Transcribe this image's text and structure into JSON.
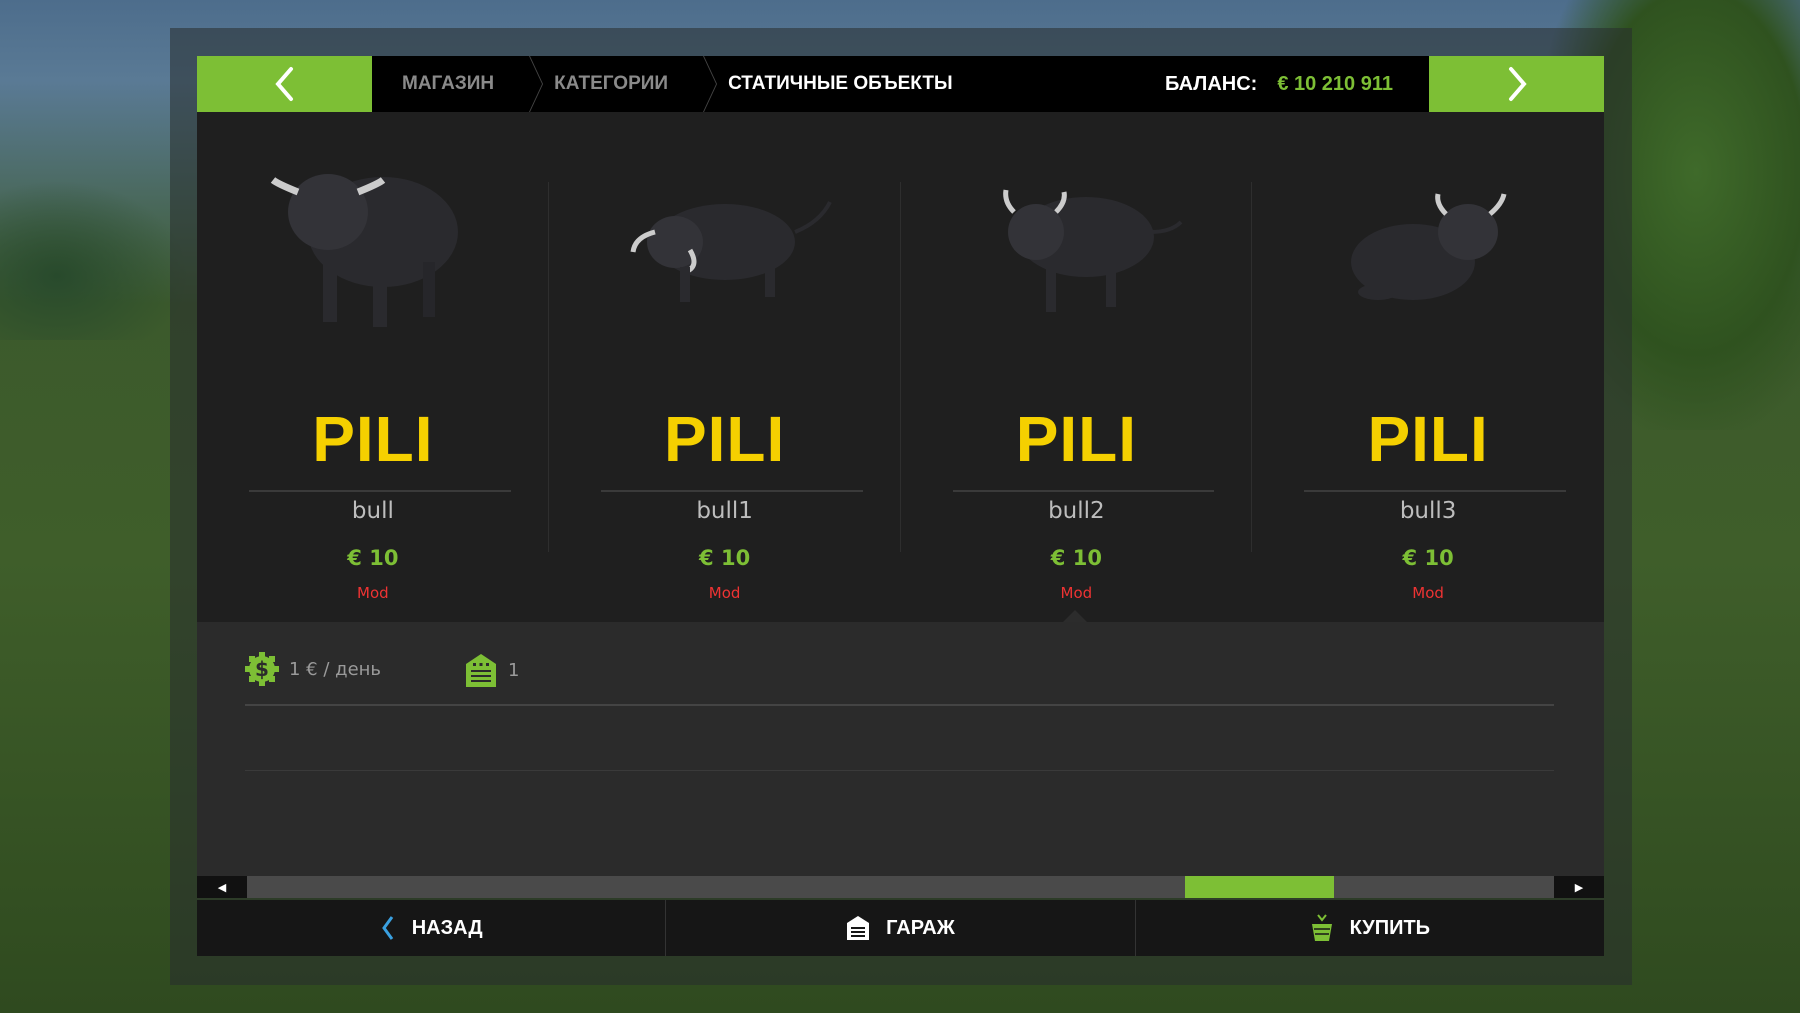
{
  "header": {
    "breadcrumbs": [
      "МАГАЗИН",
      "КАТЕГОРИИ",
      "СТАТИЧНЫЕ ОБЪЕКТЫ"
    ],
    "balance_label": "БАЛАНС:",
    "balance_value": "€ 10 210 911"
  },
  "items": [
    {
      "brand": "PILI",
      "name": "bull",
      "price": "€ 10",
      "source": "Mod"
    },
    {
      "brand": "PILI",
      "name": "bull1",
      "price": "€ 10",
      "source": "Mod"
    },
    {
      "brand": "PILI",
      "name": "bull2",
      "price": "€ 10",
      "source": "Mod"
    },
    {
      "brand": "PILI",
      "name": "bull3",
      "price": "€ 10",
      "source": "Mod"
    }
  ],
  "selected_index": 2,
  "details": {
    "maintenance": "1 € / день",
    "garage_count": "1"
  },
  "scrollbar": {
    "position_percent": 81
  },
  "footer": {
    "back": "НАЗАД",
    "garage": "ГАРАЖ",
    "buy": "КУПИТЬ"
  },
  "colors": {
    "accent": "#7dbf35",
    "brand": "#f5d000",
    "mod": "#e33333"
  }
}
